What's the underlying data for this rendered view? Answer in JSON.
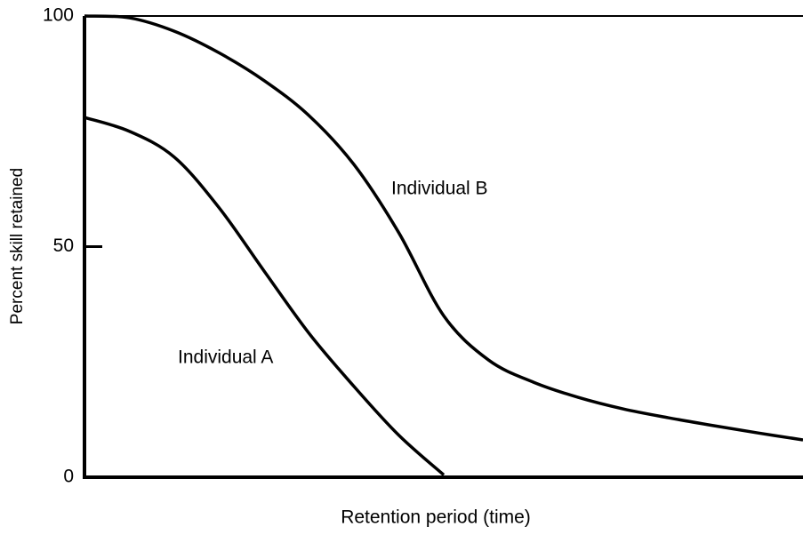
{
  "chart_data": {
    "type": "line",
    "axis_labels": {
      "x": "Retention period (time)",
      "y": "Percent skill retained"
    },
    "categories": [
      null,
      null,
      null,
      null,
      null,
      null,
      null,
      null,
      null,
      null,
      null,
      null,
      null,
      null,
      null,
      null,
      null
    ],
    "series": [
      {
        "name": "Individual B",
        "color": "#000000",
        "values": [
          100,
          99.6,
          96.7,
          92,
          86,
          78.4,
          67.8,
          53,
          35,
          25.4,
          20.6,
          17.3,
          14.8,
          12.9,
          11.2,
          9.6,
          8.1
        ]
      },
      {
        "name": "Individual A",
        "color": "#000000",
        "values": [
          78,
          75,
          69.4,
          58.4,
          44.7,
          31.2,
          19.7,
          9.1,
          0.5,
          null,
          null,
          null,
          null,
          null,
          null,
          null,
          null
        ]
      }
    ],
    "ylim": [
      0,
      100
    ],
    "yticks": [
      0,
      50,
      100
    ]
  }
}
